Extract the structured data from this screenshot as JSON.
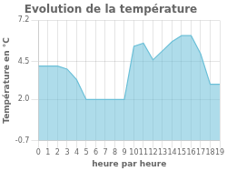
{
  "chart_data": {
    "type": "area",
    "title": "Evolution de la température",
    "xlabel": "heure par heure",
    "ylabel": "Température en °C",
    "x": [
      0,
      1,
      2,
      3,
      4,
      5,
      6,
      7,
      8,
      9,
      10,
      11,
      12,
      13,
      14,
      15,
      16,
      17,
      18,
      19
    ],
    "values": [
      4.2,
      4.2,
      4.2,
      4.0,
      3.3,
      2.0,
      2.0,
      2.0,
      2.0,
      2.0,
      5.5,
      5.7,
      4.6,
      5.2,
      5.8,
      6.2,
      6.2,
      5.0,
      3.0,
      3.0
    ],
    "color": "#6cc0d8",
    "xlim": [
      0,
      19
    ],
    "xticks": [
      0,
      1,
      2,
      3,
      4,
      5,
      6,
      7,
      8,
      9,
      10,
      11,
      12,
      13,
      14,
      15,
      16,
      17,
      18,
      19
    ],
    "ylim": [
      -0.7,
      7.2
    ],
    "yticks": [
      -0.7,
      {
        "value": 2.0,
        "label": "2.0"
      },
      4.5,
      7.2
    ],
    "grid": true
  }
}
